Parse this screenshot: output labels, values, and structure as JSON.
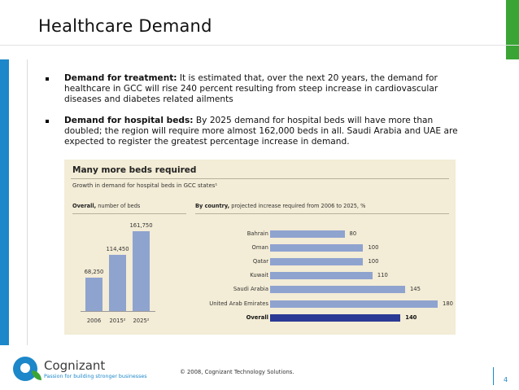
{
  "slide": {
    "title": "Healthcare Demand",
    "accent_green": "#3aa535",
    "accent_blue": "#1c87c9"
  },
  "bullets": [
    {
      "heading": "Demand for treatment:",
      "text": " It is estimated that, over the next 20 years, the demand for healthcare in GCC will rise 240 percent resulting from steep increase in cardiovascular diseases and diabetes related ailments"
    },
    {
      "heading": "Demand for hospital beds:",
      "text": " By 2025 demand for hospital beds will have more than doubled; the region  will require more almost 162,000 beds in all. Saudi Arabia and UAE are expected to register the greatest percentage increase in demand."
    }
  ],
  "figure": {
    "title": "Many more beds required",
    "subtitle": "Growth in demand for hospital beds in GCC states¹",
    "background": "#f3ecd6",
    "bar_color": "#8fa3cf",
    "overall_color": "#2b3a94",
    "left_head_bold": "Overall,",
    "left_head_rest": " number of beds",
    "right_head_bold": "By country,",
    "right_head_rest": " projected increase required from 2006 to 2025, %"
  },
  "chart_data": [
    {
      "type": "bar",
      "title": "Overall",
      "ylabel": "number of beds",
      "categories": [
        "2006",
        "2015²",
        "2025²"
      ],
      "values": [
        68250,
        114450,
        161750
      ],
      "value_labels": [
        "68,250",
        "114,450",
        "161,750"
      ],
      "ylim": [
        0,
        161750
      ]
    },
    {
      "type": "bar",
      "orientation": "horizontal",
      "title": "By country",
      "xlabel": "projected increase required from 2006 to 2025, %",
      "categories": [
        "Bahrain",
        "Oman",
        "Qatar",
        "Kuwait",
        "Saudi Arabia",
        "United Arab Emirates",
        "Overall"
      ],
      "values": [
        80,
        100,
        100,
        110,
        145,
        180,
        140
      ],
      "xlim": [
        0,
        180
      ]
    }
  ],
  "footer": {
    "logo_name": "Cognizant",
    "logo_tagline": "Passion for building stronger businesses",
    "copyright": "© 2008, Cognizant Technology Solutions.",
    "page_number": "4"
  }
}
